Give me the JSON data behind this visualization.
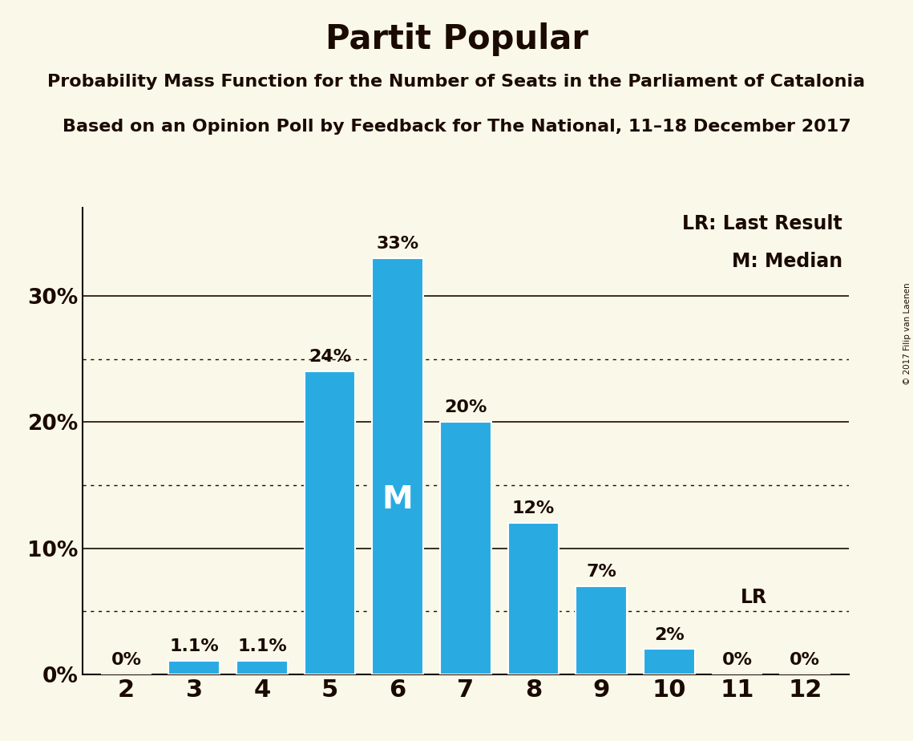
{
  "title": "Partit Popular",
  "subtitle1": "Probability Mass Function for the Number of Seats in the Parliament of Catalonia",
  "subtitle2": "Based on an Opinion Poll by Feedback for The National, 11–18 December 2017",
  "copyright": "© 2017 Filip van Laenen",
  "categories": [
    2,
    3,
    4,
    5,
    6,
    7,
    8,
    9,
    10,
    11,
    12
  ],
  "values": [
    0.0,
    1.1,
    1.1,
    24.0,
    33.0,
    20.0,
    12.0,
    7.0,
    2.0,
    0.0,
    0.0
  ],
  "labels": [
    "0%",
    "1.1%",
    "1.1%",
    "24%",
    "33%",
    "20%",
    "12%",
    "7%",
    "2%",
    "0%",
    "0%"
  ],
  "bar_color": "#29abe2",
  "background_color": "#faf8e8",
  "median_bar": 6,
  "median_label": "M",
  "lr_value": 5.0,
  "lr_label": "LR",
  "legend_lr": "LR: Last Result",
  "legend_m": "M: Median",
  "yticks_solid": [
    0,
    10,
    20,
    30
  ],
  "yticks_dotted": [
    5,
    15,
    25
  ],
  "ylim": [
    0,
    37
  ],
  "title_fontsize": 30,
  "subtitle_fontsize": 16,
  "axis_label_color": "#1a0a00",
  "bar_label_fontsize": 16,
  "ytick_fontsize": 19,
  "xtick_fontsize": 22,
  "legend_fontsize": 17,
  "median_fontsize": 28
}
